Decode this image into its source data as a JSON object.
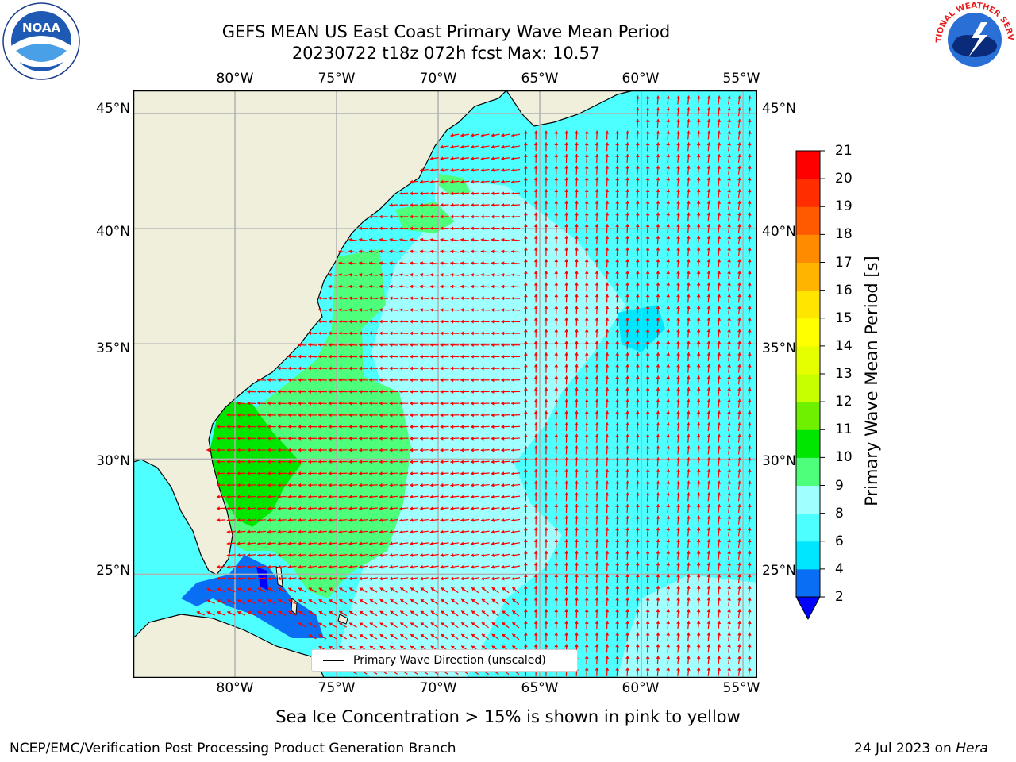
{
  "title_line1": "GEFS MEAN US East Coast Primary Wave Mean Period",
  "title_line2": "20230722 t18z 072h fcst   Max: 10.57",
  "map": {
    "lon_ticks": [
      "80°W",
      "75°W",
      "70°W",
      "65°W",
      "60°W",
      "55°W"
    ],
    "lat_ticks": [
      "45°N",
      "40°N",
      "35°N",
      "30°N",
      "25°N"
    ],
    "lon_values": [
      -80,
      -75,
      -70,
      -65,
      -60,
      -55
    ],
    "lat_values": [
      45,
      40,
      35,
      30,
      25
    ],
    "extent": {
      "lon_min": -85,
      "lon_max": -54.3,
      "lat_min": 20.5,
      "lat_max": 46
    },
    "colors": {
      "land": "#efefdc",
      "ocean": "#4dffff",
      "grid": "#b0b0b0",
      "arrow": "#ff0000",
      "coast": "#000000"
    }
  },
  "legend": {
    "label": "Primary Wave Direction (unscaled)"
  },
  "colorbar": {
    "title": "Primary Wave Mean Period [s]",
    "tick_labels": [
      "2",
      "4",
      "6",
      "8",
      "9",
      "10",
      "11",
      "12",
      "13",
      "14",
      "15",
      "16",
      "17",
      "18",
      "19",
      "20",
      "21"
    ],
    "tick_values": [
      2,
      4,
      6,
      8,
      9,
      10,
      11,
      12,
      13,
      14,
      15,
      16,
      17,
      18,
      19,
      20,
      21
    ],
    "colors": [
      "#0a6ef5",
      "#00e6ff",
      "#4dffff",
      "#a0ffff",
      "#4dff7a",
      "#00e600",
      "#6ef000",
      "#c8ff00",
      "#e6ff00",
      "#ffff00",
      "#ffe600",
      "#ffb400",
      "#ff8c00",
      "#ff5a00",
      "#ff2d00",
      "#ff0000"
    ],
    "under_color": "#0000ff"
  },
  "footnote": "Sea Ice Concentration > 15% is shown in pink to yellow",
  "credit_left": "NCEP/EMC/Verification Post Processing Product Generation Branch",
  "credit_right_date": "24 Jul 2023 on ",
  "credit_right_host": "Hera",
  "logos": {
    "left": "NOAA",
    "right": "NATIONAL WEATHER SERVICE"
  }
}
